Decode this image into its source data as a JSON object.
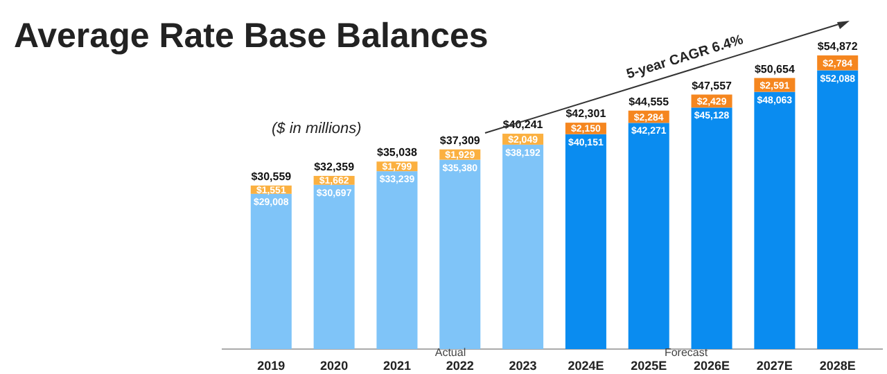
{
  "chart_data": {
    "type": "bar",
    "title": "Average Rate Base Balances",
    "stacked": true,
    "categories": [
      "2019",
      "2020",
      "2021",
      "2022",
      "2023",
      "2024E",
      "2025E",
      "2026E",
      "2027E",
      "2028E"
    ],
    "series": [
      {
        "color": "#7fc4f8",
        "colors": [
          null,
          null,
          null,
          null,
          null,
          "#0a8cf0",
          "#0a8cf0",
          "#0a8cf0",
          "#0a8cf0",
          "#0a8cf0"
        ],
        "values": [
          29008,
          30697,
          33239,
          35380,
          38192,
          40151,
          42271,
          45128,
          48063,
          52088
        ],
        "value_labels": [
          "$29,008",
          "$30,697",
          "$33,239",
          "$35,380",
          "$38,192",
          "$40,151",
          "$42,271",
          "$45,128",
          "$48,063",
          "$52,088"
        ]
      },
      {
        "color": "#fbb040",
        "colors": [
          null,
          null,
          null,
          null,
          null,
          "#f5861f",
          "#f5861f",
          "#f5861f",
          "#f5861f",
          "#f5861f"
        ],
        "values": [
          1551,
          1662,
          1799,
          1929,
          2049,
          2150,
          2284,
          2429,
          2591,
          2784
        ],
        "value_labels": [
          "$1,551",
          "$1,662",
          "$1,799",
          "$1,929",
          "$2,049",
          "$2,150",
          "$2,284",
          "$2,429",
          "$2,591",
          "$2,784"
        ]
      }
    ],
    "totals": [
      "$30,559",
      "$32,359",
      "$35,038",
      "$37,309",
      "$40,241",
      "$42,301",
      "$44,555",
      "$47,557",
      "$50,654",
      "$54,872"
    ],
    "annotations": [
      "($ in millions)",
      "5-year CAGR 6.4%",
      "Actual",
      "Forecast"
    ]
  }
}
